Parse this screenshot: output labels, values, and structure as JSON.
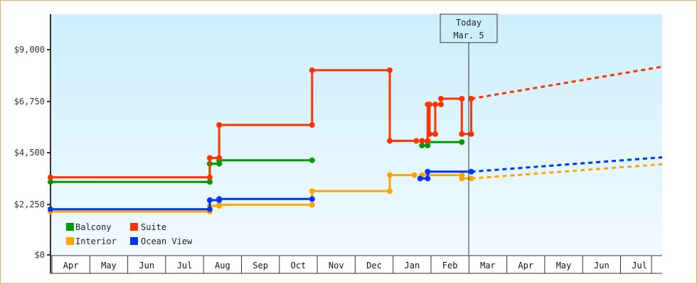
{
  "chart_data": {
    "type": "line",
    "title": "",
    "xlabel": "",
    "ylabel": "",
    "ylim": [
      0,
      10500
    ],
    "y_ticks": [
      {
        "value": 0,
        "label": "$0"
      },
      {
        "value": 2250,
        "label": "$2,250"
      },
      {
        "value": 4500,
        "label": "$4,500"
      },
      {
        "value": 6750,
        "label": "$6,750"
      },
      {
        "value": 9000,
        "label": "$9,000"
      }
    ],
    "x_months": [
      "Apr",
      "May",
      "Jun",
      "Jul",
      "Aug",
      "Sep",
      "Oct",
      "Nov",
      "Dec",
      "Jan",
      "Feb",
      "Mar",
      "Apr",
      "May",
      "Jun",
      "Jul"
    ],
    "grid": false,
    "background": "gradient light blue",
    "legend_position": "inside bottom-left",
    "today_marker": {
      "line1": "Today",
      "line2": "Mar. 5",
      "month_index": 11.1
    },
    "series": [
      {
        "name": "Balcony",
        "color": "#009900",
        "points": [
          [
            0.0,
            3200
          ],
          [
            4.2,
            3200
          ],
          [
            4.2,
            4000
          ],
          [
            4.45,
            4000
          ],
          [
            4.45,
            4150
          ],
          [
            6.9,
            4150
          ]
        ],
        "points2": [
          [
            9.8,
            4800
          ],
          [
            9.95,
            4800
          ],
          [
            9.95,
            4950
          ],
          [
            10.85,
            4950
          ]
        ],
        "projection": []
      },
      {
        "name": "Suite",
        "color": "#ff3300",
        "points": [
          [
            0.0,
            3400
          ],
          [
            4.2,
            3400
          ],
          [
            4.2,
            4250
          ],
          [
            4.45,
            4250
          ],
          [
            4.45,
            5700
          ],
          [
            6.9,
            5700
          ],
          [
            6.9,
            8100
          ],
          [
            8.95,
            8100
          ],
          [
            8.95,
            5000
          ],
          [
            9.65,
            5000
          ]
        ],
        "points2": [
          [
            9.8,
            5000
          ],
          [
            9.95,
            5000
          ],
          [
            9.95,
            6600
          ],
          [
            10.0,
            6600
          ],
          [
            10.0,
            5300
          ],
          [
            10.15,
            5300
          ],
          [
            10.15,
            6600
          ],
          [
            10.3,
            6600
          ],
          [
            10.3,
            6850
          ],
          [
            10.85,
            6850
          ],
          [
            10.85,
            5300
          ],
          [
            11.1,
            5300
          ],
          [
            11.1,
            6850
          ]
        ],
        "projection": [
          [
            11.1,
            6850
          ],
          [
            16.3,
            8300
          ]
        ]
      },
      {
        "name": "Interior",
        "color": "#ffa500",
        "points": [
          [
            0.0,
            1900
          ],
          [
            4.2,
            1900
          ],
          [
            4.2,
            2150
          ],
          [
            4.45,
            2150
          ],
          [
            4.45,
            2200
          ],
          [
            6.9,
            2200
          ],
          [
            6.9,
            2800
          ],
          [
            8.95,
            2800
          ],
          [
            8.95,
            3500
          ],
          [
            9.6,
            3500
          ]
        ],
        "points2": [
          [
            9.8,
            3500
          ],
          [
            10.85,
            3500
          ],
          [
            10.85,
            3350
          ],
          [
            11.1,
            3350
          ]
        ],
        "projection": [
          [
            11.1,
            3350
          ],
          [
            16.3,
            4000
          ]
        ]
      },
      {
        "name": "Ocean View",
        "color": "#0033ff",
        "points": [
          [
            0.0,
            2000
          ],
          [
            4.2,
            2000
          ],
          [
            4.2,
            2400
          ],
          [
            4.45,
            2400
          ],
          [
            4.45,
            2450
          ],
          [
            6.9,
            2450
          ]
        ],
        "points2": [
          [
            9.75,
            3350
          ],
          [
            9.95,
            3350
          ],
          [
            9.95,
            3650
          ],
          [
            11.1,
            3650
          ]
        ],
        "projection": [
          [
            11.1,
            3650
          ],
          [
            16.3,
            4300
          ]
        ]
      }
    ]
  },
  "legend": {
    "items": [
      {
        "label": "Balcony",
        "color": "#009900"
      },
      {
        "label": "Suite",
        "color": "#ff3300"
      },
      {
        "label": "Interior",
        "color": "#ffa500"
      },
      {
        "label": "Ocean View",
        "color": "#0033ff"
      }
    ]
  },
  "today": {
    "line1": "Today",
    "line2": "Mar. 5"
  },
  "axis": {
    "y_labels": [
      "$9,000",
      "$6,750",
      "$4,500",
      "$2,250",
      "$0"
    ],
    "months": [
      "Apr",
      "May",
      "Jun",
      "Jul",
      "Aug",
      "Sep",
      "Oct",
      "Nov",
      "Dec",
      "Jan",
      "Feb",
      "Mar",
      "Apr",
      "May",
      "Jun",
      "Jul"
    ]
  }
}
